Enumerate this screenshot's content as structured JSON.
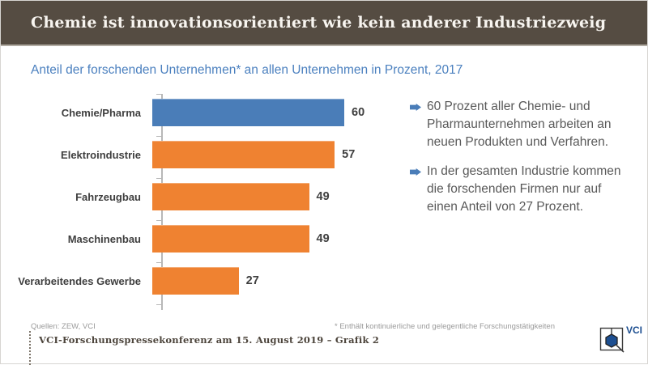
{
  "header": {
    "title": "Chemie ist innovationsorientiert wie kein anderer Industriezweig"
  },
  "subtitle": "Anteil der forschenden Unternehmen* an allen Unternehmen in Prozent, 2017",
  "chart_data": {
    "type": "bar",
    "orientation": "horizontal",
    "title": "Anteil der forschenden Unternehmen* an allen Unternehmen in Prozent, 2017",
    "categories": [
      "Chemie/Pharma",
      "Elektroindustrie",
      "Fahrzeugbau",
      "Maschinenbau",
      "Verarbeitendes Gewerbe"
    ],
    "values": [
      60,
      57,
      49,
      49,
      27
    ],
    "xlim": [
      0,
      63
    ],
    "grid": false,
    "legend": "none",
    "data_labels": "end-of-bar",
    "bar_colors": [
      "#4a7db8",
      "#ef8231",
      "#ef8231",
      "#ef8231",
      "#ef8231"
    ],
    "highlighted_category": "Chemie/Pharma"
  },
  "bullets": [
    "60 Prozent aller Chemie- und Pharmaunternehmen arbeiten an neuen Produkten und Verfahren.",
    "In der gesamten Industrie kommen die forschenden Firmen nur auf einen Anteil von 27 Prozent."
  ],
  "footnotes": {
    "sources": "Quellen: ZEW, VCI",
    "asterisk_note": "* Enthält kontinuierliche und gelegentliche Forschungstätigkeiten"
  },
  "footer": {
    "caption": "VCI-Forschungspressekonferenz am 15. August 2019 – Grafik 2",
    "logo_text": "VCI"
  },
  "colors": {
    "header_bg": "#554c42",
    "accent_blue": "#4a7db8",
    "accent_orange": "#ef8231",
    "subtitle_blue": "#4b80bf",
    "logo_navy": "#1d4f91",
    "axis_gray": "#b8b8b8"
  }
}
